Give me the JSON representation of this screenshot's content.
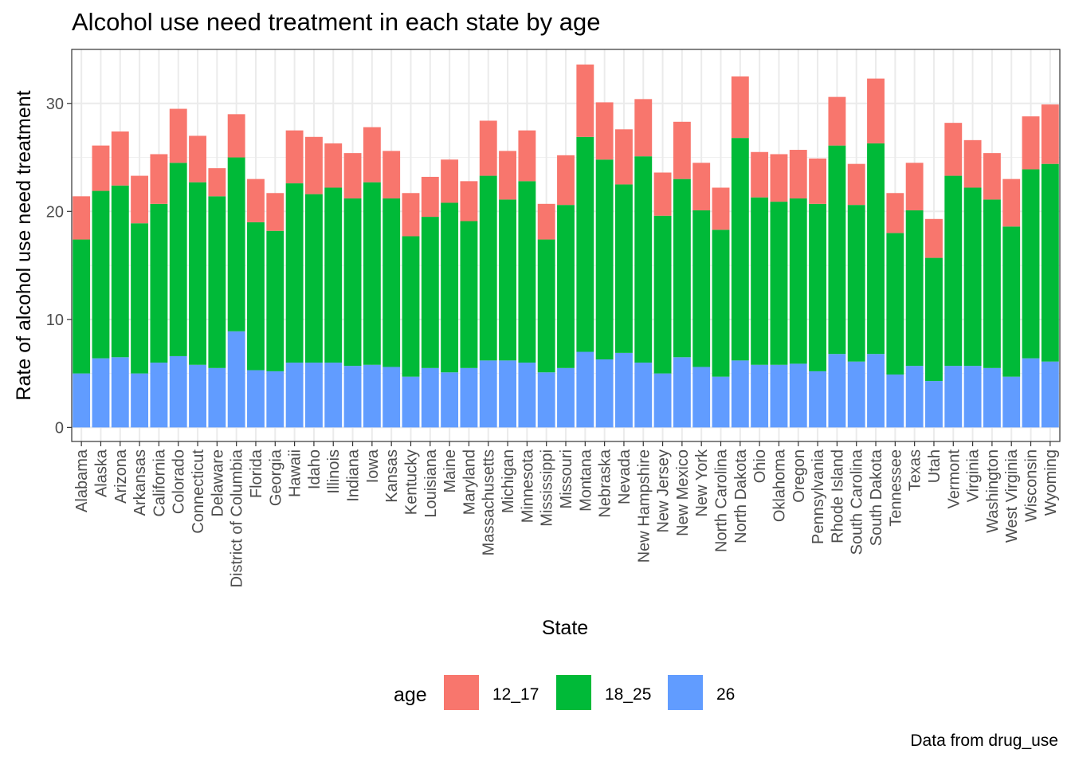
{
  "chart_data": {
    "type": "bar",
    "stacked": true,
    "title": "Alcohol use need treatment in each state by age",
    "xlabel": "State",
    "ylabel": "Rate of alcohol use need treatment",
    "caption": "Data from drug_use",
    "ylim": [
      -1.3,
      35
    ],
    "yticks": [
      0,
      10,
      20,
      30
    ],
    "grid": true,
    "legend": {
      "title": "age",
      "position": "bottom"
    },
    "categories": [
      "Alabama",
      "Alaska",
      "Arizona",
      "Arkansas",
      "California",
      "Colorado",
      "Connecticut",
      "Delaware",
      "District of Columbia",
      "Florida",
      "Georgia",
      "Hawaii",
      "Idaho",
      "Illinois",
      "Indiana",
      "Iowa",
      "Kansas",
      "Kentucky",
      "Louisiana",
      "Maine",
      "Maryland",
      "Massachusetts",
      "Michigan",
      "Minnesota",
      "Mississippi",
      "Missouri",
      "Montana",
      "Nebraska",
      "Nevada",
      "New Hampshire",
      "New Jersey",
      "New Mexico",
      "New York",
      "North Carolina",
      "North Dakota",
      "Ohio",
      "Oklahoma",
      "Oregon",
      "Pennsylvania",
      "Rhode Island",
      "South Carolina",
      "South Dakota",
      "Tennessee",
      "Texas",
      "Utah",
      "Vermont",
      "Virginia",
      "Washington",
      "West Virginia",
      "Wisconsin",
      "Wyoming"
    ],
    "series": [
      {
        "name": "26",
        "color": "#619CFF",
        "values": [
          5.0,
          6.4,
          6.5,
          5.0,
          6.0,
          6.6,
          5.8,
          5.5,
          8.9,
          5.3,
          5.2,
          6.0,
          6.0,
          6.0,
          5.7,
          5.8,
          5.6,
          4.7,
          5.5,
          5.1,
          5.5,
          6.2,
          6.2,
          6.0,
          5.1,
          5.5,
          7.0,
          6.3,
          6.9,
          6.0,
          5.0,
          6.5,
          5.6,
          4.7,
          6.2,
          5.8,
          5.8,
          5.9,
          5.2,
          6.8,
          6.1,
          6.8,
          4.9,
          5.7,
          4.3,
          5.7,
          5.7,
          5.5,
          4.7,
          6.4,
          6.1
        ]
      },
      {
        "name": "18_25",
        "color": "#00BA38",
        "values": [
          12.4,
          15.5,
          15.9,
          13.9,
          14.7,
          17.9,
          16.9,
          15.9,
          16.1,
          13.7,
          13.0,
          16.6,
          15.6,
          16.2,
          15.5,
          16.9,
          15.6,
          13.0,
          14.0,
          15.7,
          13.6,
          17.1,
          14.9,
          16.8,
          12.3,
          15.1,
          19.9,
          18.5,
          15.6,
          19.1,
          14.6,
          16.5,
          14.5,
          13.6,
          20.6,
          15.5,
          15.1,
          15.3,
          15.5,
          19.3,
          14.5,
          19.5,
          13.1,
          14.4,
          11.4,
          17.6,
          16.5,
          15.6,
          13.9,
          17.5,
          18.3
        ]
      },
      {
        "name": "12_17",
        "color": "#F8766D",
        "values": [
          4.0,
          4.2,
          5.0,
          4.4,
          4.6,
          5.0,
          4.3,
          2.6,
          4.0,
          4.0,
          3.5,
          4.9,
          5.3,
          4.1,
          4.2,
          5.1,
          4.4,
          4.0,
          3.7,
          4.0,
          3.7,
          5.1,
          4.5,
          4.7,
          3.3,
          4.6,
          6.7,
          5.3,
          5.1,
          5.3,
          4.0,
          5.3,
          4.4,
          3.9,
          5.7,
          4.2,
          4.4,
          4.5,
          4.2,
          4.5,
          3.8,
          6.0,
          3.7,
          4.4,
          3.6,
          4.9,
          4.4,
          4.3,
          4.4,
          4.9,
          5.5
        ]
      }
    ],
    "legend_order": [
      "12_17",
      "18_25",
      "26"
    ]
  }
}
